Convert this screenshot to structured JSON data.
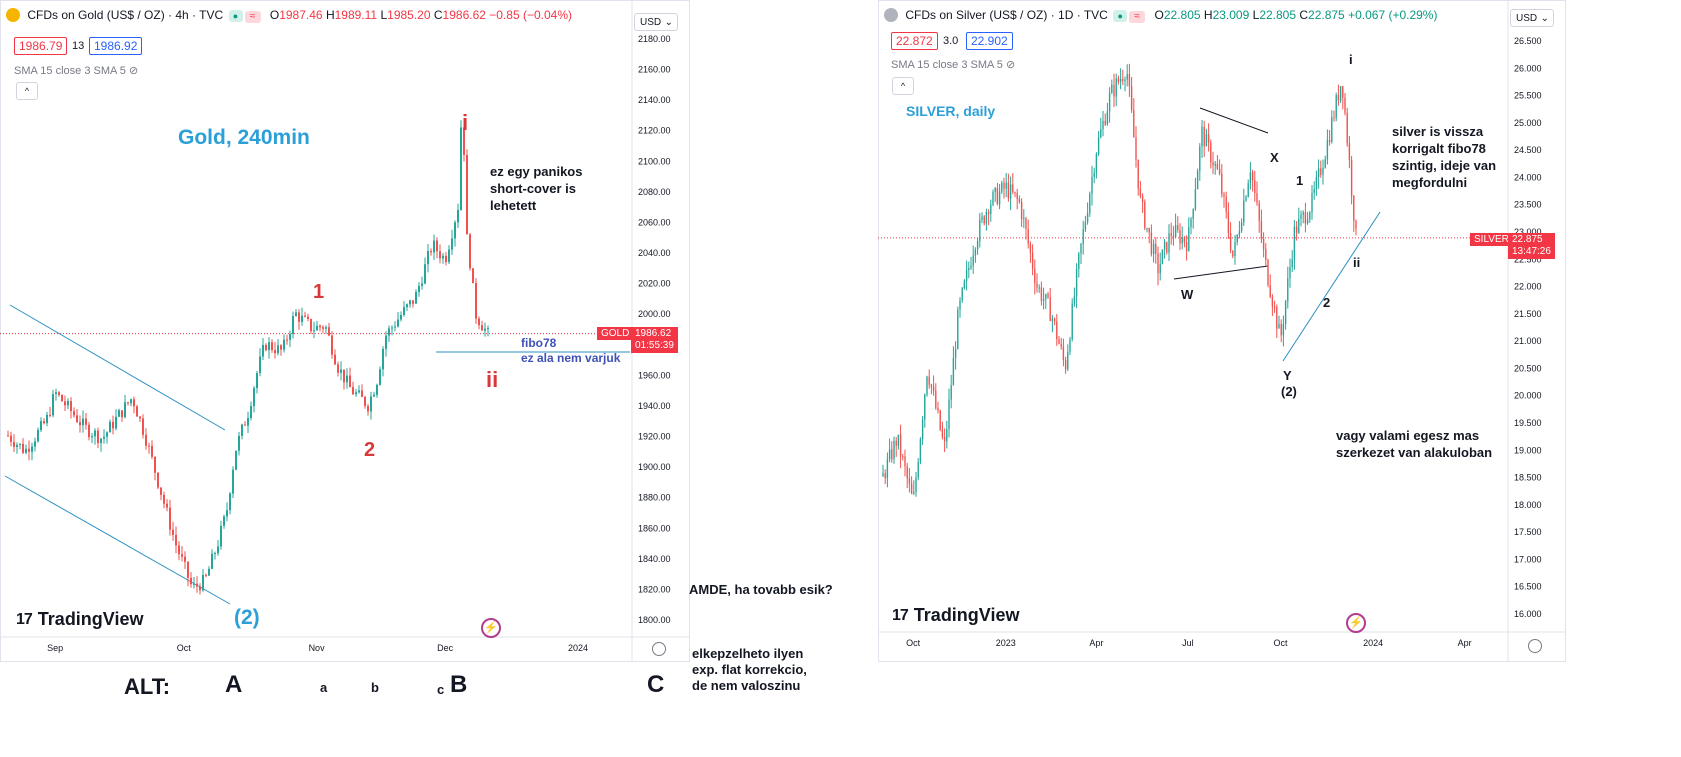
{
  "gold": {
    "header": {
      "symbol": "CFDs on Gold (US$ / OZ) · 4h · TVC",
      "o": "1987.46",
      "h": "1989.11",
      "l": "1985.20",
      "c": "1986.62",
      "chg": "−0.85 (−0.04%)"
    },
    "bid": "1986.79",
    "spread": "13",
    "ask": "1986.92",
    "indicator": "SMA 15 close 3 SMA 5",
    "currency": "USD",
    "ticker_tag": "GOLD",
    "last_price": "1986.62",
    "countdown": "01:55:39",
    "chart_data": {
      "type": "line",
      "title": "Gold, 240min",
      "ylim": [
        1800,
        2180
      ],
      "y_ticks": [
        "2180.00",
        "2160.00",
        "2140.00",
        "2120.00",
        "2100.00",
        "2080.00",
        "2060.00",
        "2040.00",
        "2020.00",
        "2000.00",
        "1980.00",
        "1960.00",
        "1940.00",
        "1920.00",
        "1900.00",
        "1880.00",
        "1860.00",
        "1840.00",
        "1820.00",
        "1800.00"
      ],
      "x_ticks": [
        "Sep",
        "Oct",
        "Nov",
        "Dec",
        "2024"
      ],
      "series": [
        {
          "x": [
            "Aug 21",
            "Aug 25",
            "Aug 30",
            "Sep 1",
            "Sep 5",
            "Sep 8",
            "Sep 12",
            "Sep 15",
            "Sep 19",
            "Sep 22",
            "Sep 26",
            "Sep 29",
            "Oct 3",
            "Oct 6",
            "Oct 9",
            "Oct 11",
            "Oct 13",
            "Oct 16",
            "Oct 18",
            "Oct 20",
            "Oct 24",
            "Oct 27",
            "Oct 31",
            "Nov 3",
            "Nov 6",
            "Nov 9",
            "Nov 13",
            "Nov 15",
            "Nov 17",
            "Nov 21",
            "Nov 24",
            "Nov 28",
            "Dec 1",
            "Dec 4",
            "Dec 5",
            "Dec 6",
            "Dec 7",
            "Dec 8",
            "Dec 11"
          ],
          "y": [
            1920,
            1910,
            1930,
            1948,
            1935,
            1925,
            1918,
            1930,
            1945,
            1920,
            1880,
            1850,
            1820,
            1825,
            1850,
            1870,
            1910,
            1935,
            1960,
            1980,
            1975,
            2000,
            1990,
            1992,
            1965,
            1950,
            1940,
            1955,
            1985,
            2000,
            2010,
            2045,
            2035,
            2070,
            2145,
            2050,
            2030,
            2000,
            1986
          ]
        }
      ],
      "annotations": [
        "i",
        "1",
        "2",
        "ii",
        "(2)",
        "ez egy panikos",
        "short-cover is",
        "lehetett",
        "fibo78",
        "ez ala nem varjuk"
      ]
    }
  },
  "silver": {
    "header": {
      "symbol": "CFDs on Silver (US$ / OZ) · 1D · TVC",
      "o": "22.805",
      "h": "23.009",
      "l": "22.805",
      "c": "22.875",
      "chg": "+0.067 (+0.29%)"
    },
    "bid": "22.872",
    "spread": "3.0",
    "ask": "22.902",
    "indicator": "SMA 15 close 3 SMA 5",
    "currency": "USD",
    "ticker_tag": "SILVER",
    "last_price": "22.875",
    "countdown": "13:47:26",
    "chart_data": {
      "type": "line",
      "title": "SILVER, daily",
      "ylim": [
        16.0,
        26.5
      ],
      "y_ticks": [
        "26.500",
        "26.000",
        "25.500",
        "25.000",
        "24.500",
        "24.000",
        "23.500",
        "23.000",
        "22.500",
        "22.000",
        "21.500",
        "21.000",
        "20.500",
        "20.000",
        "19.500",
        "19.000",
        "18.500",
        "18.000",
        "17.500",
        "17.000",
        "16.500",
        "16.000"
      ],
      "x_ticks": [
        "Oct",
        "2023",
        "Apr",
        "Jul",
        "Oct",
        "2024",
        "Apr"
      ],
      "series": [
        {
          "x": [
            "2022-09-01",
            "2022-09-15",
            "2022-10-01",
            "2022-10-15",
            "2022-11-01",
            "2022-11-15",
            "2022-12-01",
            "2022-12-15",
            "2023-01-01",
            "2023-01-15",
            "2023-02-01",
            "2023-02-15",
            "2023-03-01",
            "2023-03-15",
            "2023-04-01",
            "2023-04-15",
            "2023-05-01",
            "2023-05-15",
            "2023-06-01",
            "2023-06-15",
            "2023-07-01",
            "2023-07-15",
            "2023-08-01",
            "2023-08-15",
            "2023-09-01",
            "2023-09-15",
            "2023-10-01",
            "2023-10-15",
            "2023-11-01",
            "2023-11-15",
            "2023-12-01",
            "2023-12-15"
          ],
          "y": [
            18.5,
            19.2,
            18.0,
            20.5,
            19.0,
            21.5,
            22.8,
            23.5,
            23.8,
            23.5,
            22.0,
            21.5,
            20.5,
            22.5,
            24.5,
            25.5,
            26.0,
            23.5,
            22.3,
            23.0,
            22.8,
            24.8,
            24.0,
            22.5,
            24.2,
            22.5,
            21.0,
            23.0,
            23.5,
            24.5,
            25.8,
            22.875
          ]
        }
      ],
      "annotations": [
        "i",
        "ii",
        "1",
        "2",
        "X",
        "W",
        "Y",
        "(2)",
        "silver is vissza",
        "korrigalt fibo78",
        "szintig, ideje van",
        "megfordulni",
        "vagy valami egesz mas",
        "szerkezet van alakuloban"
      ]
    }
  },
  "extra": {
    "amde": "AMDE, ha tovabb esik?",
    "note1": "elkepzelheto ilyen",
    "note2": "exp. flat korrekcio,",
    "note3": "de nem valoszinu",
    "alt": "ALT:",
    "A": "A",
    "a": "a",
    "b": "b",
    "c": "c",
    "B": "B",
    "C": "C"
  },
  "brand": "TradingView",
  "colors": {
    "up": "#26a69a",
    "down": "#ef5350",
    "accent": "#f23645",
    "trend": "#2b8fc2"
  }
}
